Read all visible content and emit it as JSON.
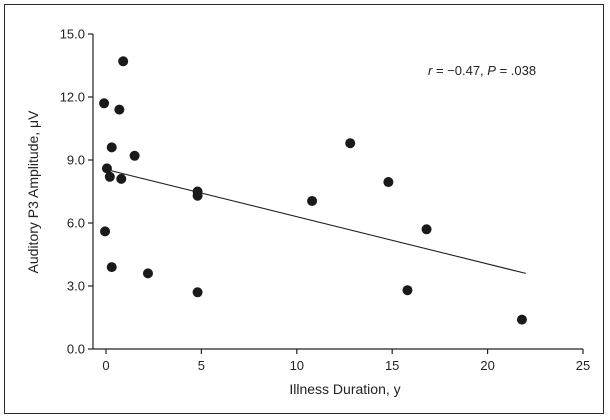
{
  "chart_data": {
    "type": "scatter",
    "xlabel": "Illness Duration, y",
    "ylabel": "Auditory P3 Amplitude, μV",
    "xlim": [
      0,
      25
    ],
    "ylim": [
      0,
      15
    ],
    "x_ticks": [
      0,
      5,
      10,
      15,
      20,
      25
    ],
    "y_ticks": [
      0.0,
      3.0,
      6.0,
      9.0,
      12.0,
      15.0
    ],
    "x_tick_labels": [
      "0",
      "5",
      "10",
      "15",
      "20",
      "25"
    ],
    "y_tick_labels": [
      "0.0",
      "3.0",
      "6.0",
      "9.0",
      "12.0",
      "15.0"
    ],
    "points": [
      {
        "x": 0.9,
        "y": 13.7
      },
      {
        "x": -0.1,
        "y": 11.7
      },
      {
        "x": 0.7,
        "y": 11.4
      },
      {
        "x": 0.3,
        "y": 9.6
      },
      {
        "x": 1.5,
        "y": 9.2
      },
      {
        "x": 0.05,
        "y": 8.6
      },
      {
        "x": 0.2,
        "y": 8.2
      },
      {
        "x": 0.8,
        "y": 8.1
      },
      {
        "x": 4.8,
        "y": 7.5
      },
      {
        "x": 4.8,
        "y": 7.3
      },
      {
        "x": 10.8,
        "y": 7.05
      },
      {
        "x": 12.8,
        "y": 9.8
      },
      {
        "x": 14.8,
        "y": 7.95
      },
      {
        "x": 16.8,
        "y": 5.7
      },
      {
        "x": -0.05,
        "y": 5.6
      },
      {
        "x": 0.3,
        "y": 3.9
      },
      {
        "x": 2.2,
        "y": 3.6
      },
      {
        "x": 4.8,
        "y": 2.7
      },
      {
        "x": 15.8,
        "y": 2.8
      },
      {
        "x": 21.8,
        "y": 1.4
      }
    ],
    "trendline": {
      "x1": 0.0,
      "y1": 8.55,
      "x2": 22.0,
      "y2": 3.6
    },
    "annotation": {
      "r_label": "r",
      "r_value": " = −0.47, ",
      "p_label": "P",
      "p_value": " = .038"
    },
    "grid": false,
    "marker_color": "#1a1a1a"
  }
}
